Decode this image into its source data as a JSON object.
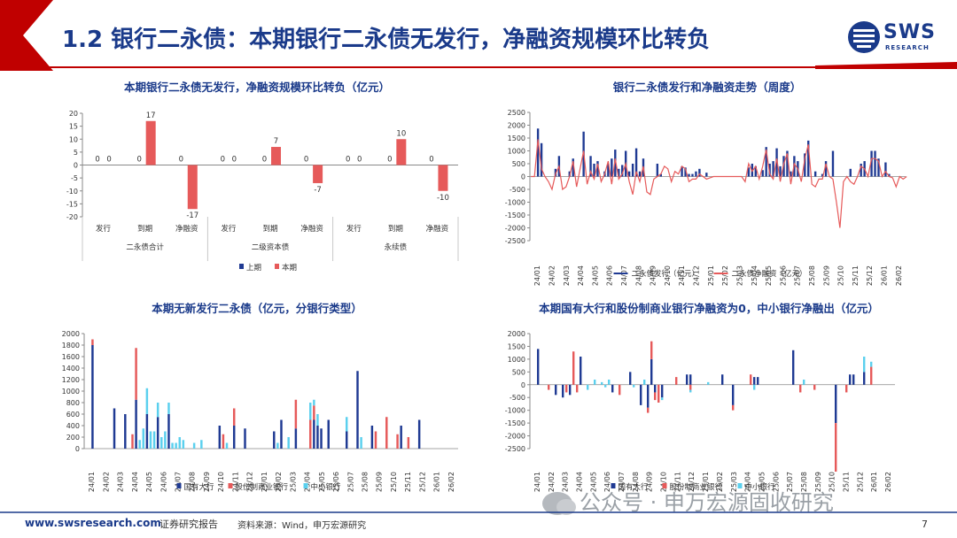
{
  "header": {
    "title": "1.2 银行二永债：本期银行二永债无发行，净融资规模环比转负",
    "logo_text": "SWS",
    "logo_sub": "RESEARCH"
  },
  "footer": {
    "url": "www.swsresearch.com",
    "doc_type": "证券研究报告",
    "source": "资料来源：Wind，申万宏源研究",
    "page": "7"
  },
  "watermark": "公众号 · 申万宏源固收研究",
  "colors": {
    "navy": "#1f3a93",
    "red": "#e65a5a",
    "cyan": "#5bd0ee",
    "accent": "#c00000"
  },
  "chart_data": [
    {
      "type": "bar",
      "title": "本期银行二永债无发行，净融资规模环比转负（亿元）",
      "categories": [
        "发行",
        "到期",
        "净融资",
        "发行",
        "到期",
        "净融资",
        "发行",
        "到期",
        "净融资"
      ],
      "groups": [
        "二永债合计",
        "二级资本债",
        "永续债"
      ],
      "series": [
        {
          "name": "上期",
          "values": [
            0,
            0,
            0,
            0,
            0,
            0,
            0,
            0,
            0
          ],
          "color": "#1f3a93"
        },
        {
          "name": "本期",
          "values": [
            0,
            17,
            -17,
            0,
            7,
            -7,
            0,
            10,
            -10
          ],
          "color": "#e65a5a"
        }
      ],
      "ylim": [
        -20,
        20
      ],
      "yticks": [
        -20,
        -15,
        -10,
        -5,
        0,
        5,
        10,
        15,
        20
      ],
      "legend": "bottom"
    },
    {
      "type": "bar+line",
      "title": "银行二永债发行和净融资走势（周度）",
      "ylim": [
        -2500,
        2500
      ],
      "yticks": [
        -2500,
        -2000,
        -1500,
        -1000,
        -500,
        0,
        500,
        1000,
        1500,
        2000,
        2500
      ],
      "xticks": [
        "24/01",
        "24/02",
        "24/03",
        "24/04",
        "24/05",
        "24/06",
        "24/07",
        "24/08",
        "24/09",
        "24/10",
        "24/11",
        "24/12",
        "25/01",
        "25/02",
        "25/03",
        "25/04",
        "25/05",
        "25/06",
        "25/07",
        "25/08",
        "25/09",
        "25/10",
        "25/11",
        "25/12",
        "26/01",
        "26/02"
      ],
      "series": [
        {
          "name": "二永债发行（亿元）",
          "type": "bar",
          "color": "#1f3a93",
          "values": [
            0,
            0,
            1870,
            1300,
            0,
            0,
            0,
            300,
            800,
            0,
            0,
            200,
            700,
            0,
            0,
            1750,
            0,
            800,
            500,
            600,
            0,
            200,
            500,
            700,
            1050,
            300,
            450,
            1000,
            200,
            500,
            1100,
            200,
            700,
            0,
            0,
            0,
            500,
            100,
            0,
            0,
            0,
            0,
            0,
            400,
            350,
            100,
            100,
            200,
            300,
            0,
            150,
            0,
            0,
            0,
            0,
            0,
            0,
            0,
            0,
            0,
            0,
            0,
            350,
            500,
            400,
            0,
            250,
            1150,
            500,
            600,
            1100,
            400,
            800,
            1000,
            200,
            800,
            600,
            0,
            900,
            1400,
            0,
            200,
            0,
            100,
            600,
            0,
            1000,
            0,
            0,
            0,
            0,
            300,
            0,
            0,
            500,
            600,
            0,
            1000,
            1000,
            700,
            0,
            550,
            100,
            0,
            0,
            0,
            0
          ]
        },
        {
          "name": "二永债净融资（亿元）",
          "type": "line",
          "color": "#e65a5a",
          "values": [
            0,
            0,
            1450,
            300,
            0,
            -200,
            -500,
            100,
            400,
            -500,
            -400,
            0,
            600,
            -400,
            300,
            1000,
            -300,
            200,
            -100,
            500,
            -200,
            100,
            600,
            -300,
            700,
            -100,
            100,
            500,
            -200,
            -700,
            200,
            -200,
            400,
            -600,
            -700,
            -100,
            0,
            100,
            400,
            300,
            -200,
            200,
            100,
            400,
            300,
            -200,
            -100,
            -100,
            100,
            0,
            -100,
            -50,
            0,
            0,
            0,
            0,
            0,
            0,
            0,
            0,
            0,
            -200,
            500,
            200,
            400,
            -100,
            400,
            1050,
            100,
            -100,
            700,
            -200,
            500,
            900,
            -300,
            500,
            300,
            -200,
            700,
            1250,
            -300,
            -400,
            -100,
            -100,
            500,
            0,
            -100,
            -1000,
            -2000,
            -200,
            0,
            -200,
            -300,
            0,
            400,
            300,
            0,
            700,
            700,
            600,
            0,
            200,
            0,
            -50,
            -400,
            0,
            -100,
            0
          ]
        }
      ],
      "legend": "bottom"
    },
    {
      "type": "stacked-bar",
      "title": "本期无新发行二永债（亿元，分银行类型）",
      "ylim": [
        0,
        2000
      ],
      "yticks": [
        0,
        200,
        400,
        600,
        800,
        1000,
        1200,
        1400,
        1600,
        1800,
        2000
      ],
      "xticks": [
        "24/01",
        "24/02",
        "24/03",
        "24/04",
        "24/05",
        "24/06",
        "24/07",
        "24/08",
        "24/09",
        "24/10",
        "24/11",
        "24/12",
        "25/01",
        "25/02",
        "25/03",
        "25/04",
        "25/05",
        "25/06",
        "25/07",
        "25/08",
        "25/09",
        "25/10",
        "25/11",
        "25/12",
        "26/01",
        "26/02"
      ],
      "series": [
        {
          "name": "国有大行",
          "color": "#1f3a93",
          "values": [
            0,
            0,
            1800,
            0,
            0,
            0,
            0,
            0,
            700,
            0,
            0,
            600,
            0,
            0,
            850,
            0,
            0,
            600,
            0,
            0,
            550,
            0,
            0,
            600,
            0,
            0,
            0,
            0,
            0,
            0,
            0,
            0,
            0,
            0,
            0,
            0,
            0,
            400,
            0,
            0,
            0,
            400,
            0,
            0,
            350,
            0,
            0,
            0,
            0,
            0,
            0,
            0,
            300,
            0,
            500,
            0,
            0,
            0,
            350,
            0,
            0,
            0,
            0,
            500,
            400,
            350,
            0,
            500,
            0,
            0,
            0,
            0,
            300,
            0,
            0,
            1350,
            0,
            0,
            0,
            400,
            0,
            0,
            0,
            0,
            0,
            0,
            0,
            400,
            0,
            0,
            0,
            0,
            500,
            0,
            0,
            0,
            0,
            0,
            0,
            0,
            0,
            0,
            0
          ]
        },
        {
          "name": "股份制商业银行",
          "color": "#e65a5a",
          "values": [
            0,
            0,
            100,
            0,
            0,
            0,
            0,
            0,
            0,
            0,
            0,
            0,
            0,
            250,
            900,
            0,
            0,
            0,
            0,
            0,
            0,
            0,
            0,
            0,
            0,
            0,
            0,
            0,
            0,
            0,
            0,
            0,
            0,
            0,
            0,
            0,
            0,
            0,
            250,
            0,
            0,
            300,
            0,
            0,
            0,
            0,
            0,
            0,
            0,
            0,
            0,
            0,
            0,
            0,
            0,
            0,
            0,
            0,
            500,
            0,
            0,
            0,
            500,
            250,
            0,
            0,
            0,
            0,
            0,
            0,
            0,
            0,
            0,
            0,
            0,
            0,
            0,
            0,
            0,
            0,
            300,
            0,
            0,
            550,
            0,
            0,
            250,
            0,
            0,
            200,
            0,
            0,
            0,
            0,
            0,
            0,
            0,
            0,
            0,
            0,
            0,
            0,
            0
          ]
        },
        {
          "name": "中小银行",
          "color": "#5bd0ee",
          "values": [
            0,
            0,
            0,
            0,
            0,
            0,
            0,
            0,
            0,
            0,
            0,
            0,
            0,
            0,
            0,
            150,
            350,
            450,
            300,
            300,
            250,
            200,
            300,
            200,
            100,
            100,
            200,
            150,
            0,
            0,
            100,
            0,
            150,
            0,
            0,
            0,
            0,
            0,
            0,
            100,
            0,
            0,
            0,
            0,
            0,
            0,
            0,
            0,
            0,
            0,
            0,
            0,
            0,
            100,
            0,
            0,
            200,
            0,
            0,
            0,
            0,
            0,
            300,
            100,
            200,
            0,
            0,
            0,
            0,
            0,
            0,
            0,
            250,
            0,
            0,
            0,
            200,
            0,
            0,
            0,
            0,
            0,
            0,
            0,
            0,
            0,
            0,
            0,
            0,
            0,
            0,
            0,
            0,
            0,
            0,
            0,
            0,
            0,
            0,
            0,
            0,
            0,
            0
          ]
        }
      ],
      "legend": "bottom"
    },
    {
      "type": "bar",
      "title": "本期国有大行和股份制商业银行净融资为0，中小银行净融出（亿元）",
      "ylim": [
        -2500,
        2000
      ],
      "yticks": [
        -2500,
        -2000,
        -1500,
        -1000,
        -500,
        0,
        500,
        1000,
        1500,
        2000
      ],
      "xticks": [
        "24/01",
        "24/02",
        "24/03",
        "24/04",
        "24/05",
        "24/06",
        "24/07",
        "24/08",
        "24/09",
        "24/10",
        "24/11",
        "24/12",
        "25/01",
        "25/02",
        "25/03",
        "25/04",
        "25/05",
        "25/06",
        "25/07",
        "25/08",
        "25/09",
        "25/10",
        "25/11",
        "25/12",
        "26/01",
        "26/02"
      ],
      "series": [
        {
          "name": "国有大行",
          "color": "#1f3a93",
          "values": [
            0,
            0,
            1400,
            0,
            0,
            0,
            0,
            -400,
            0,
            -500,
            0,
            -400,
            0,
            0,
            1100,
            0,
            0,
            0,
            0,
            0,
            0,
            0,
            0,
            -300,
            0,
            0,
            0,
            0,
            500,
            0,
            0,
            -800,
            0,
            -900,
            1000,
            -300,
            0,
            -500,
            0,
            0,
            0,
            0,
            0,
            0,
            400,
            400,
            0,
            0,
            0,
            0,
            0,
            0,
            0,
            0,
            400,
            0,
            0,
            -800,
            0,
            0,
            0,
            0,
            0,
            300,
            300,
            0,
            0,
            0,
            0,
            0,
            0,
            0,
            0,
            0,
            1350,
            0,
            0,
            0,
            0,
            0,
            0,
            0,
            0,
            0,
            0,
            0,
            -1500,
            0,
            0,
            0,
            400,
            400,
            0,
            0,
            500,
            0,
            0,
            0,
            0,
            0,
            0,
            0,
            0
          ]
        },
        {
          "name": "股份制商业银行",
          "color": "#e65a5a",
          "values": [
            0,
            0,
            0,
            0,
            0,
            -200,
            0,
            0,
            0,
            0,
            -300,
            0,
            1300,
            -300,
            0,
            0,
            0,
            0,
            0,
            0,
            0,
            0,
            0,
            0,
            0,
            -400,
            0,
            0,
            0,
            0,
            0,
            0,
            0,
            -200,
            700,
            -300,
            -700,
            0,
            0,
            0,
            0,
            300,
            0,
            0,
            0,
            -200,
            0,
            0,
            0,
            0,
            0,
            0,
            0,
            0,
            0,
            0,
            0,
            -200,
            0,
            0,
            0,
            0,
            400,
            0,
            0,
            0,
            0,
            0,
            0,
            0,
            0,
            0,
            0,
            0,
            0,
            0,
            -300,
            0,
            0,
            0,
            -200,
            0,
            0,
            0,
            0,
            0,
            -1900,
            0,
            0,
            -300,
            0,
            0,
            0,
            0,
            0,
            0,
            700,
            0,
            0,
            0,
            0,
            0,
            0
          ]
        },
        {
          "name": "中小银行",
          "color": "#5bd0ee",
          "values": [
            0,
            0,
            0,
            0,
            0,
            0,
            0,
            0,
            0,
            0,
            0,
            0,
            0,
            0,
            0,
            0,
            -200,
            0,
            200,
            0,
            100,
            -100,
            200,
            0,
            0,
            0,
            0,
            0,
            0,
            -100,
            0,
            0,
            200,
            0,
            0,
            0,
            0,
            -100,
            0,
            0,
            0,
            0,
            0,
            0,
            0,
            -100,
            0,
            0,
            0,
            0,
            100,
            0,
            0,
            0,
            0,
            0,
            0,
            0,
            0,
            0,
            0,
            0,
            0,
            -200,
            0,
            0,
            0,
            0,
            0,
            0,
            0,
            0,
            0,
            0,
            0,
            0,
            0,
            200,
            0,
            0,
            0,
            0,
            0,
            0,
            0,
            0,
            0,
            0,
            0,
            0,
            0,
            0,
            0,
            0,
            600,
            0,
            200,
            0,
            0,
            0,
            0,
            0,
            0
          ]
        }
      ],
      "legend": "bottom"
    }
  ]
}
